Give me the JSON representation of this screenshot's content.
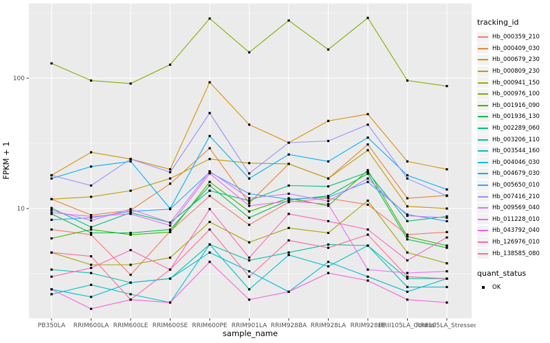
{
  "figure": {
    "panel_bg": "#EBEBEB",
    "grid_color": "#FFFFFF",
    "tick_color": "#333333",
    "tick_label_color": "#4D4D4D",
    "marker_color": "#000000"
  },
  "chart_data": {
    "type": "line",
    "title": "",
    "xlabel": "sample_name",
    "ylabel": "FPKM + 1",
    "y_scale": "log10",
    "y_ticks": [
      100,
      10
    ],
    "y_tick_labels": [
      "100",
      "10"
    ],
    "y_minor_breaks": [
      316.2,
      31.62,
      3.162
    ],
    "ylim": [
      1.45,
      355
    ],
    "grid": "on",
    "legend_position": "right",
    "legend_title": "tracking_id",
    "marker": "filled-black-square",
    "categories": [
      "PB350LA",
      "RRIM600LA",
      "RRIM600LE",
      "RRIM600SE",
      "RRIM600PE",
      "RRIM901LA",
      "RRIM928BA",
      "RRIM928LA",
      "RRIM928LE",
      "RRII105LA_Control",
      "RRII105LA_Stressed"
    ],
    "series": [
      {
        "name": "Hb_000359_210",
        "color": "#F8766D",
        "values": [
          6.9,
          6.3,
          3.1,
          6.7,
          12.5,
          7.5,
          11.2,
          12.0,
          10.7,
          6.3,
          6.6
        ]
      },
      {
        "name": "Hb_000409_030",
        "color": "#EA8331",
        "values": [
          11.8,
          8.9,
          9.7,
          15.5,
          29,
          11,
          22,
          17,
          31,
          12,
          12.6
        ]
      },
      {
        "name": "Hb_000679_230",
        "color": "#D89000",
        "values": [
          18,
          27,
          24,
          20,
          93,
          44,
          32,
          47,
          53,
          23,
          20
        ]
      },
      {
        "name": "Hb_000809_230",
        "color": "#C09B00",
        "values": [
          11.8,
          12.3,
          13.7,
          17,
          24,
          22.3,
          22,
          17,
          28,
          10.4,
          10
        ]
      },
      {
        "name": "Hb_000941_150",
        "color": "#A3A500",
        "values": [
          4.6,
          3.7,
          3.7,
          4.2,
          7.9,
          5.5,
          7.1,
          6.5,
          11.5,
          4.6,
          3.8
        ]
      },
      {
        "name": "Hb_000976_100",
        "color": "#7CAE00",
        "values": [
          130,
          96,
          91,
          127,
          287,
          158,
          277,
          166,
          290,
          96,
          87
        ]
      },
      {
        "name": "Hb_001916_090",
        "color": "#39B600",
        "values": [
          5.9,
          6.9,
          6.3,
          6.6,
          16,
          9.5,
          12,
          10.5,
          19.7,
          6.1,
          5.2
        ]
      },
      {
        "name": "Hb_001936_130",
        "color": "#00BB4E",
        "values": [
          9.1,
          6.5,
          6.5,
          6.9,
          15,
          8.5,
          11.6,
          12.5,
          18.5,
          5.8,
          5.0
        ]
      },
      {
        "name": "Hb_002289_060",
        "color": "#00BF7D",
        "values": [
          10.1,
          7.2,
          9.3,
          7.8,
          13.7,
          11.5,
          15,
          14.8,
          19,
          8.0,
          8.7
        ]
      },
      {
        "name": "Hb_003206_110",
        "color": "#00C1A3",
        "values": [
          3.4,
          3.2,
          2.7,
          2.9,
          5.3,
          4.0,
          4.6,
          5.3,
          5.2,
          2.9,
          2.9
        ]
      },
      {
        "name": "Hb_003544_160",
        "color": "#00BFC4",
        "values": [
          2.2,
          2.6,
          2.2,
          1.9,
          5.3,
          2.4,
          4.4,
          3.6,
          5.2,
          2.5,
          2.5
        ]
      },
      {
        "name": "Hb_004046_030",
        "color": "#00BBDA",
        "values": [
          2.4,
          2.1,
          2.7,
          2.9,
          4.6,
          3.3,
          2.3,
          3.9,
          3.0,
          2.3,
          2.9
        ]
      },
      {
        "name": "Hb_004679_030",
        "color": "#00B0F6",
        "values": [
          17,
          21,
          23,
          10,
          36,
          17,
          26,
          23,
          35,
          18,
          14
        ]
      },
      {
        "name": "Hb_005650_010",
        "color": "#35A2FF",
        "values": [
          8.2,
          8.5,
          9.5,
          9.9,
          19,
          13,
          11.8,
          12.2,
          16,
          9.0,
          8.0
        ]
      },
      {
        "name": "Hb_007416_210",
        "color": "#9590FF",
        "values": [
          18,
          15,
          24,
          19,
          54,
          18.6,
          32,
          33,
          44,
          17,
          12.5
        ]
      },
      {
        "name": "Hb_009569_040",
        "color": "#C77CFF",
        "values": [
          9.7,
          8.1,
          9.9,
          7.8,
          19.3,
          12,
          13,
          11.4,
          17,
          8.8,
          8.5
        ]
      },
      {
        "name": "Hb_011228_010",
        "color": "#E76BF3",
        "values": [
          9.3,
          8.7,
          9.1,
          7.4,
          18.6,
          10.5,
          11.4,
          10.8,
          3.4,
          3.2,
          3.3
        ]
      },
      {
        "name": "Hb_043792_040",
        "color": "#FA62DB",
        "values": [
          2.4,
          1.7,
          2.0,
          1.9,
          3.9,
          2.0,
          2.3,
          3.2,
          2.8,
          2.0,
          1.9
        ]
      },
      {
        "name": "Hb_126976_010",
        "color": "#FF62BC",
        "values": [
          3.0,
          3.5,
          4.8,
          3.4,
          9.9,
          4.2,
          9.1,
          8.0,
          6.9,
          4.0,
          6.0
        ]
      },
      {
        "name": "Hb_138585_080",
        "color": "#FF6A98",
        "values": [
          4.6,
          4.3,
          2.0,
          3.4,
          6.9,
          3.0,
          5.7,
          5.0,
          6.3,
          3.0,
          2.9
        ]
      }
    ],
    "quant_legend": {
      "title": "quant_status",
      "items": [
        {
          "label": "OK",
          "shape": "square",
          "color": "#000000"
        }
      ]
    }
  }
}
